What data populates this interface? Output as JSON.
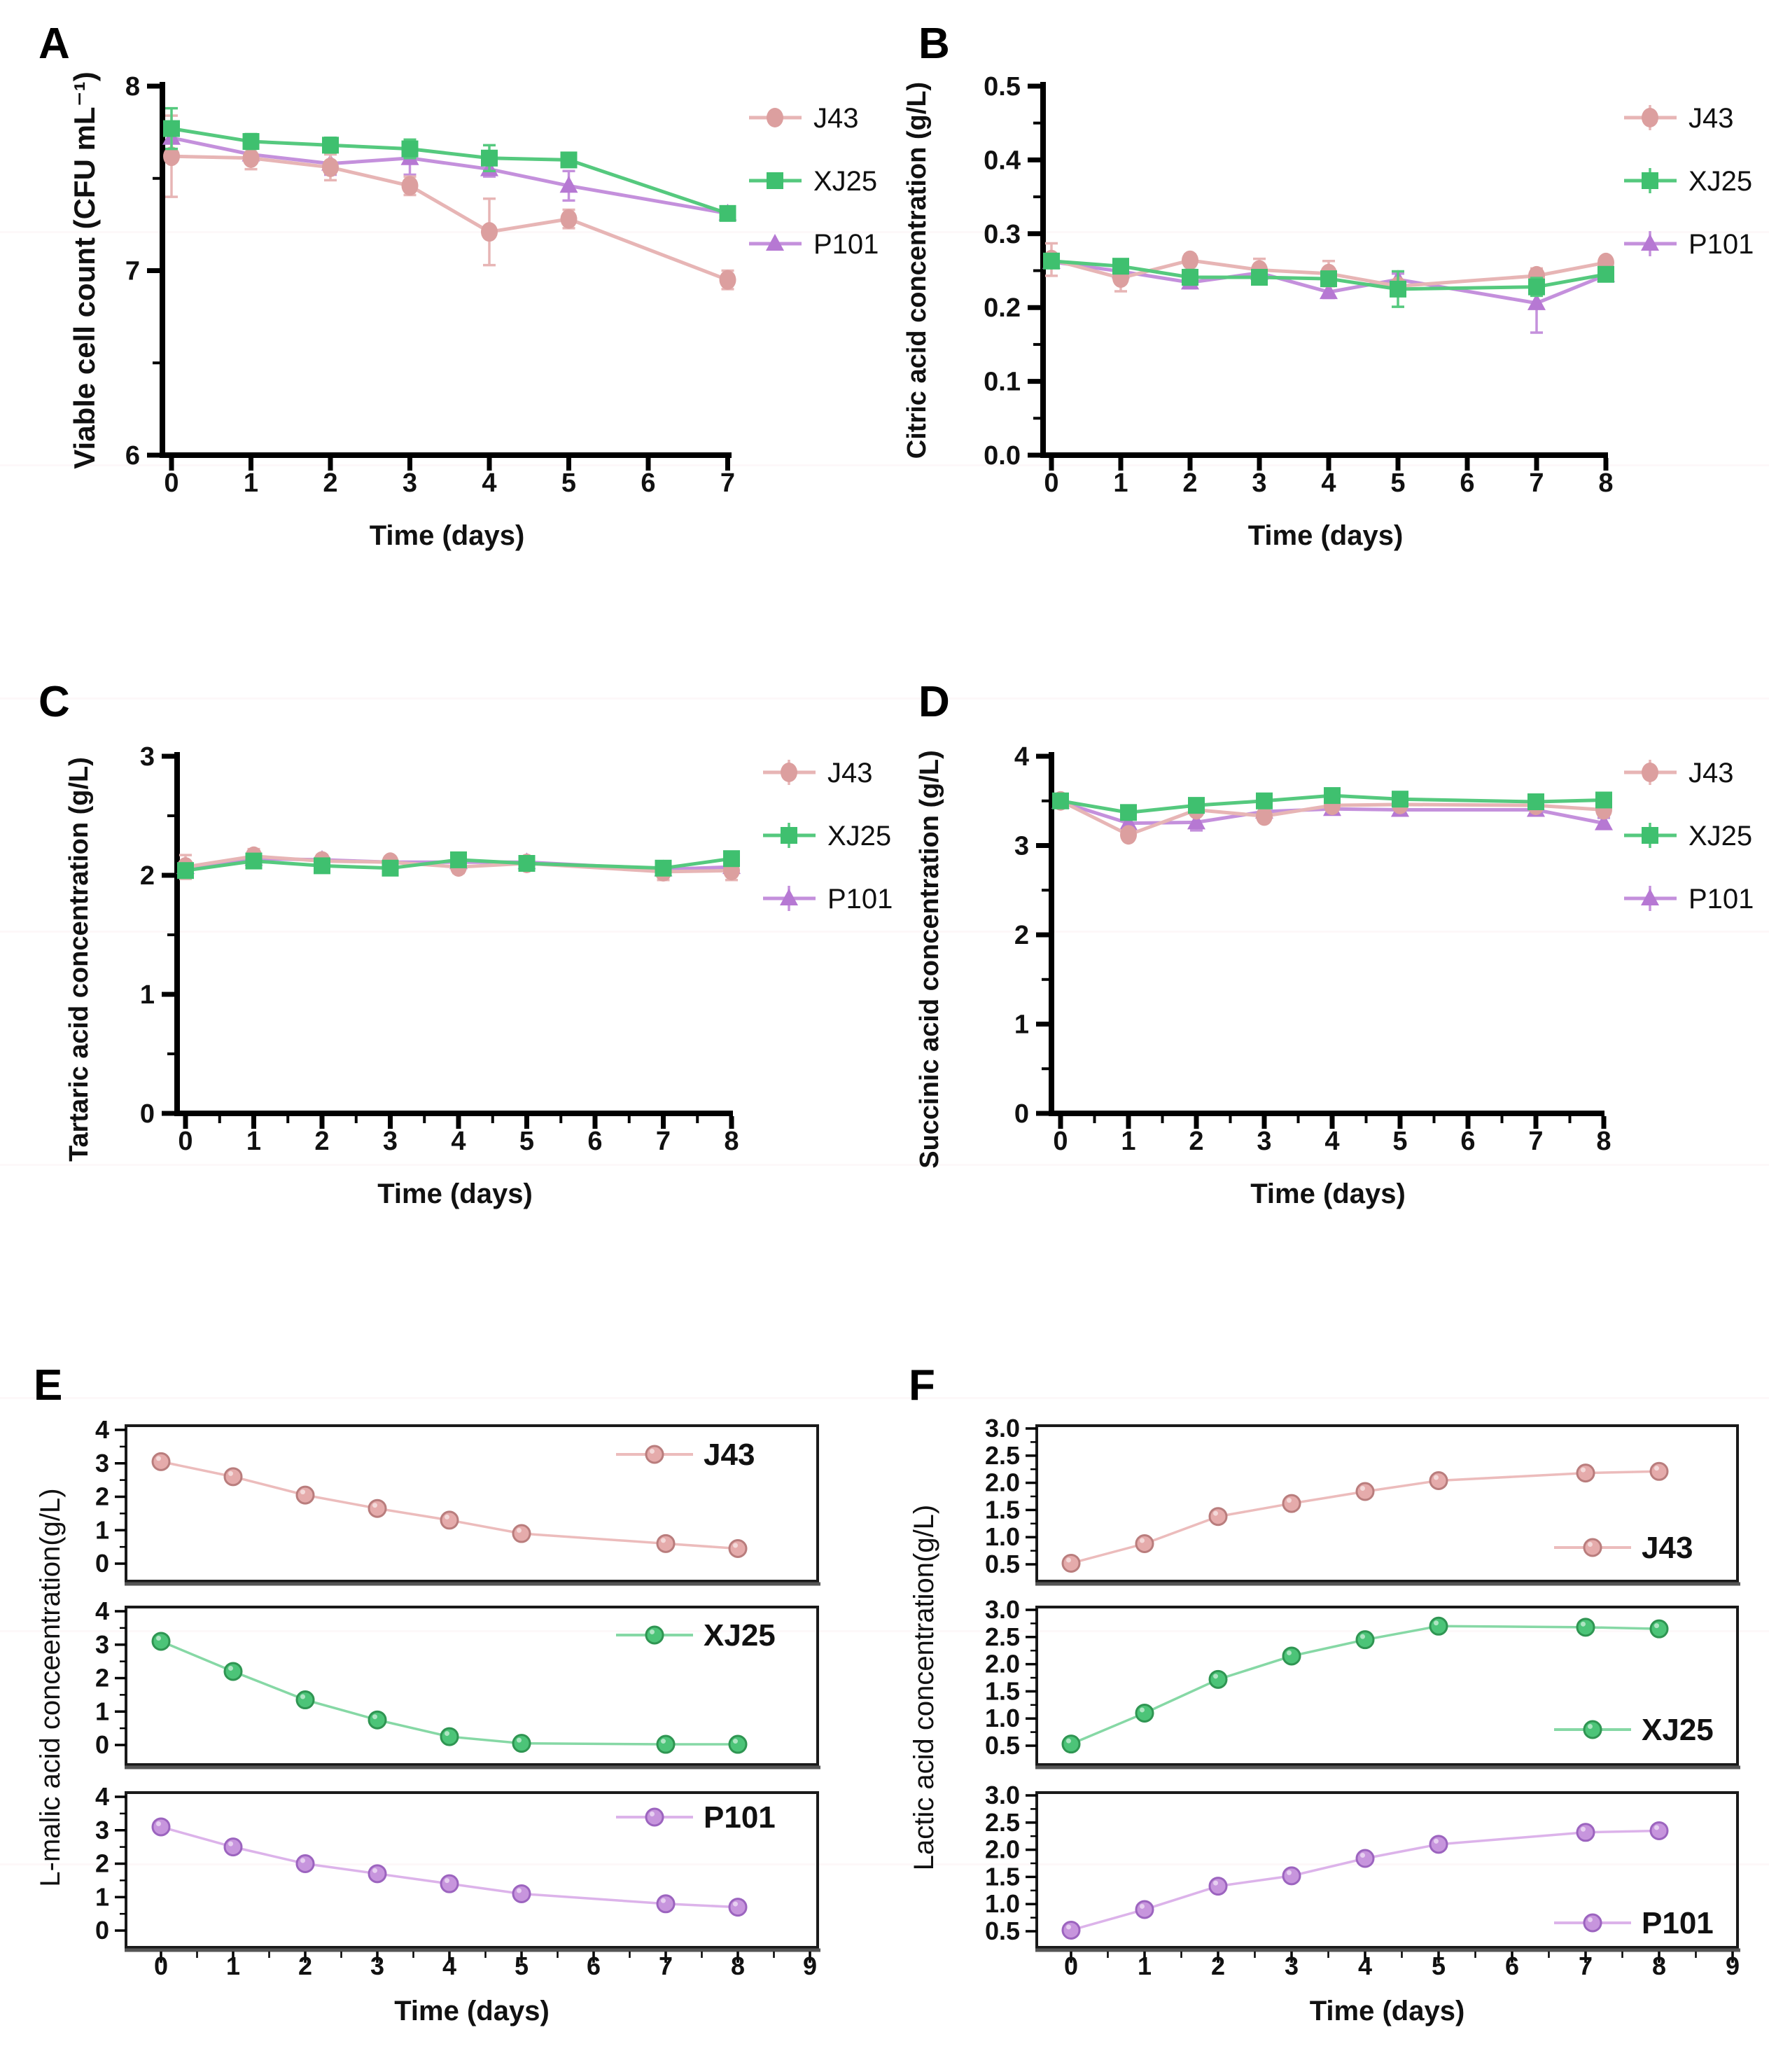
{
  "page": {
    "background": "#ffffff",
    "text_color": "#111111"
  },
  "panels": {
    "A": {
      "label": "A"
    },
    "B": {
      "label": "B"
    },
    "C": {
      "label": "C"
    },
    "D": {
      "label": "D"
    },
    "E": {
      "label": "E"
    },
    "F": {
      "label": "F"
    }
  },
  "series_styles": {
    "J43": {
      "color": "#dc9f9f",
      "line": "#e7b5b5",
      "ef_fill": "#e5abab",
      "ef_stroke": "#b97d7d",
      "ef_line": "#ecbcbc"
    },
    "XJ25": {
      "color": "#3fc06f",
      "line": "#55c97e",
      "ef_fill": "#4cc478",
      "ef_stroke": "#2f9552",
      "ef_line": "#86d8a5"
    },
    "P101": {
      "color": "#b678d3",
      "line": "#c490dc",
      "ef_fill": "#c795dd",
      "ef_stroke": "#9c64bf",
      "ef_line": "#dcb3ea"
    }
  },
  "chart_data": [
    {
      "panel": "A",
      "type": "line",
      "title": "",
      "xlabel": "Time (days)",
      "ylabel": "Viable cell count (CFU mL⁻¹)",
      "x": [
        0,
        1,
        2,
        3,
        4,
        5,
        7
      ],
      "xlim": [
        -0.3,
        7.35
      ],
      "ylim": [
        6,
        8
      ],
      "grid": false,
      "xticks": [
        0,
        1,
        2,
        3,
        4,
        5,
        6,
        7
      ],
      "xtick_labels": [
        "0",
        "1",
        "2",
        "3",
        "4",
        "5",
        "6",
        "7"
      ],
      "xticks_minor": [],
      "yticks": [
        6,
        7,
        8
      ],
      "ytick_labels": [
        "6",
        "7",
        "8"
      ],
      "yticks_minor": [
        6.5,
        7.5
      ],
      "legend_position": "right-outside",
      "legend_errorbar": false,
      "series": [
        {
          "name": "J43",
          "marker": "circle",
          "values": [
            7.62,
            7.61,
            7.56,
            7.46,
            7.21,
            7.28,
            6.95
          ],
          "errors": [
            0.22,
            0.06,
            0.07,
            0.05,
            0.18,
            0.05,
            0.05
          ]
        },
        {
          "name": "XJ25",
          "marker": "square",
          "values": [
            7.77,
            7.7,
            7.68,
            7.66,
            7.61,
            7.6,
            7.31
          ],
          "errors": [
            0.11,
            0.04,
            0.04,
            0.05,
            0.07,
            0.03,
            0.02
          ]
        },
        {
          "name": "P101",
          "marker": "triangle",
          "values": [
            7.72,
            7.63,
            7.58,
            7.61,
            7.55,
            7.46,
            7.31
          ],
          "errors": [
            0.08,
            0.05,
            0.06,
            0.09,
            0.04,
            0.08,
            0.02
          ]
        }
      ]
    },
    {
      "panel": "B",
      "type": "line",
      "title": "",
      "xlabel": "Time (days)",
      "ylabel": "Citric acid concentration（g/L）",
      "x": [
        0,
        1,
        2,
        3,
        4,
        5,
        7,
        8
      ],
      "xlim": [
        -0.3,
        8.35
      ],
      "ylim": [
        0,
        0.5
      ],
      "grid": false,
      "xticks": [
        0,
        1,
        2,
        3,
        4,
        5,
        6,
        7,
        8
      ],
      "xtick_labels": [
        "0",
        "1",
        "2",
        "3",
        "4",
        "5",
        "6",
        "7",
        "8"
      ],
      "xticks_minor": [],
      "yticks": [
        0,
        0.1,
        0.2,
        0.3,
        0.4,
        0.5
      ],
      "ytick_labels": [
        "0.0",
        "0.1",
        "0.2",
        "0.3",
        "0.4",
        "0.5"
      ],
      "yticks_minor": [
        0.05,
        0.15,
        0.25,
        0.35,
        0.45
      ],
      "legend_position": "right-outside",
      "legend_errorbar": true,
      "series": [
        {
          "name": "J43",
          "marker": "circle",
          "values": [
            0.265,
            0.24,
            0.264,
            0.251,
            0.246,
            0.229,
            0.243,
            0.261
          ],
          "errors": [
            0.022,
            0.018,
            0.008,
            0.015,
            0.017,
            0.008,
            0.01,
            0.006
          ]
        },
        {
          "name": "XJ25",
          "marker": "square",
          "values": [
            0.263,
            0.256,
            0.241,
            0.241,
            0.239,
            0.225,
            0.228,
            0.245
          ],
          "errors": [
            0.006,
            0.008,
            0.01,
            0.006,
            0.006,
            0.024,
            0.012,
            0.006
          ]
        },
        {
          "name": "P101",
          "marker": "triangle",
          "values": [
            0.262,
            0.249,
            0.234,
            0.247,
            0.221,
            0.238,
            0.206,
            0.244
          ],
          "errors": [
            0.005,
            0.006,
            0.008,
            0.006,
            0.008,
            0.008,
            0.04,
            0.006
          ]
        }
      ]
    },
    {
      "panel": "C",
      "type": "line",
      "title": "",
      "xlabel": "Time (days)",
      "ylabel": "Tartaric acid concentration（g/L）",
      "x": [
        0,
        1,
        2,
        3,
        4,
        5,
        7,
        8
      ],
      "xlim": [
        -0.3,
        8.35
      ],
      "ylim": [
        0,
        3
      ],
      "grid": false,
      "xticks": [
        0,
        1,
        2,
        3,
        4,
        5,
        6,
        7,
        8
      ],
      "xtick_labels": [
        "0",
        "1",
        "2",
        "3",
        "4",
        "5",
        "6",
        "7",
        "8"
      ],
      "xticks_minor": [
        0.5,
        1.5,
        2.5,
        3.5,
        4.5,
        5.5,
        6.5,
        7.5
      ],
      "yticks": [
        0,
        1,
        2,
        3
      ],
      "ytick_labels": [
        "0",
        "1",
        "2",
        "3"
      ],
      "yticks_minor": [
        0.5,
        1.5,
        2.5
      ],
      "legend_position": "right-outside",
      "legend_errorbar": true,
      "series": [
        {
          "name": "J43",
          "marker": "circle",
          "values": [
            2.07,
            2.16,
            2.12,
            2.11,
            2.07,
            2.1,
            2.03,
            2.04
          ],
          "errors": [
            0.1,
            0.06,
            0.05,
            0.04,
            0.05,
            0.04,
            0.07,
            0.08
          ]
        },
        {
          "name": "XJ25",
          "marker": "square",
          "values": [
            2.04,
            2.12,
            2.08,
            2.06,
            2.13,
            2.1,
            2.06,
            2.14
          ],
          "errors": [
            0.04,
            0.04,
            0.03,
            0.03,
            0.03,
            0.03,
            0.03,
            0.04
          ]
        },
        {
          "name": "P101",
          "marker": "triangle",
          "values": [
            2.07,
            2.14,
            2.13,
            2.11,
            2.11,
            2.11,
            2.05,
            2.07
          ],
          "errors": [
            0.04,
            0.05,
            0.04,
            0.03,
            0.03,
            0.03,
            0.03,
            0.03
          ]
        }
      ]
    },
    {
      "panel": "D",
      "type": "line",
      "title": "",
      "xlabel": "Time (days)",
      "ylabel": "Succinic acid concentration（g/L）",
      "x": [
        0,
        1,
        2,
        3,
        4,
        5,
        7,
        8
      ],
      "xlim": [
        -0.3,
        8.35
      ],
      "ylim": [
        0,
        4
      ],
      "grid": false,
      "xticks": [
        0,
        1,
        2,
        3,
        4,
        5,
        6,
        7,
        8
      ],
      "xtick_labels": [
        "0",
        "1",
        "2",
        "3",
        "4",
        "5",
        "6",
        "7",
        "8"
      ],
      "xticks_minor": [
        0.5,
        1.5,
        2.5,
        3.5,
        4.5,
        5.5,
        6.5,
        7.5
      ],
      "yticks": [
        0,
        1,
        2,
        3,
        4
      ],
      "ytick_labels": [
        "0",
        "1",
        "2",
        "3",
        "4"
      ],
      "yticks_minor": [
        0.5,
        1.5,
        2.5,
        3.5
      ],
      "legend_position": "right-outside",
      "legend_errorbar": true,
      "series": [
        {
          "name": "J43",
          "marker": "circle",
          "values": [
            3.5,
            3.12,
            3.4,
            3.33,
            3.45,
            3.46,
            3.45,
            3.4
          ],
          "errors": [
            0.05,
            0.06,
            0.05,
            0.05,
            0.05,
            0.06,
            0.04,
            0.06
          ]
        },
        {
          "name": "XJ25",
          "marker": "square",
          "values": [
            3.5,
            3.37,
            3.45,
            3.5,
            3.56,
            3.52,
            3.49,
            3.51
          ],
          "errors": [
            0.04,
            0.05,
            0.05,
            0.05,
            0.05,
            0.06,
            0.04,
            0.05
          ]
        },
        {
          "name": "P101",
          "marker": "triangle",
          "values": [
            3.49,
            3.25,
            3.26,
            3.38,
            3.41,
            3.4,
            3.4,
            3.25
          ],
          "errors": [
            0.04,
            0.05,
            0.09,
            0.04,
            0.04,
            0.04,
            0.04,
            0.06
          ]
        }
      ]
    },
    {
      "panel": "E",
      "type": "line-stacked",
      "title": "",
      "xlabel": "Time (days)",
      "ylabel": "L-malic acid conceentration(g/L)",
      "x": [
        0,
        1,
        2,
        3,
        4,
        5,
        7,
        8
      ],
      "xlim": [
        -0.49,
        9.07
      ],
      "ylim_each": [
        -0.52,
        4.13
      ],
      "grid": false,
      "xticks": [
        0,
        1,
        2,
        3,
        4,
        5,
        6,
        7,
        8,
        9
      ],
      "xtick_labels": [
        "0",
        "1",
        "2",
        "3",
        "4",
        "5",
        "6",
        "7",
        "8",
        "9"
      ],
      "xticks_minor": [
        0.5,
        1.5,
        2.5,
        3.5,
        4.5,
        5.5,
        6.5,
        7.5,
        8.5
      ],
      "yticks": [
        0,
        1,
        2,
        3,
        4
      ],
      "ytick_labels": [
        "0",
        "1",
        "2",
        "3",
        "4"
      ],
      "yticks_minor": [
        0.5,
        1.5,
        2.5,
        3.5
      ],
      "legend_position": "inside-top-right",
      "subplots": [
        {
          "name": "J43",
          "marker": "sphere",
          "values": [
            3.05,
            2.6,
            2.05,
            1.65,
            1.3,
            0.9,
            0.6,
            0.45
          ],
          "errors": [
            0.1,
            0.08,
            0.08,
            0.08,
            0.07,
            0.08,
            0.07,
            0.07
          ]
        },
        {
          "name": "XJ25",
          "marker": "sphere",
          "values": [
            3.1,
            2.2,
            1.35,
            0.75,
            0.25,
            0.05,
            0.02,
            0.02
          ],
          "errors": [
            0.1,
            0.09,
            0.08,
            0.07,
            0.06,
            0.05,
            0.04,
            0.04
          ]
        },
        {
          "name": "P101",
          "marker": "sphere",
          "values": [
            3.1,
            2.5,
            2.0,
            1.7,
            1.4,
            1.1,
            0.8,
            0.7
          ],
          "errors": [
            0.09,
            0.07,
            0.07,
            0.07,
            0.06,
            0.06,
            0.05,
            0.05
          ]
        }
      ]
    },
    {
      "panel": "F",
      "type": "line-stacked",
      "title": "",
      "xlabel": "Time (days)",
      "ylabel": "Lactic acid concentration(g/L)",
      "x": [
        0,
        1,
        2,
        3,
        4,
        5,
        7,
        8
      ],
      "xlim": [
        -0.49,
        9.07
      ],
      "ylim_each": [
        0.19,
        3.05
      ],
      "grid": false,
      "xticks": [
        0,
        1,
        2,
        3,
        4,
        5,
        6,
        7,
        8,
        9
      ],
      "xtick_labels": [
        "0",
        "1",
        "2",
        "3",
        "4",
        "5",
        "6",
        "7",
        "8",
        "9"
      ],
      "xticks_minor": [
        0.5,
        1.5,
        2.5,
        3.5,
        4.5,
        5.5,
        6.5,
        7.5,
        8.5
      ],
      "yticks": [
        0.5,
        1.0,
        1.5,
        2.0,
        2.5,
        3.0
      ],
      "ytick_labels": [
        "0.5",
        "1.0",
        "1.5",
        "2.0",
        "2.5",
        "3.0"
      ],
      "yticks_minor": [
        0.75,
        1.25,
        1.75,
        2.25,
        2.75
      ],
      "legend_position": "inside-bottom-right",
      "subplots": [
        {
          "name": "J43",
          "marker": "sphere",
          "values": [
            0.52,
            0.88,
            1.38,
            1.62,
            1.84,
            2.04,
            2.18,
            2.21
          ],
          "errors": [
            0.06,
            0.07,
            0.08,
            0.07,
            0.07,
            0.06,
            0.09,
            0.07
          ]
        },
        {
          "name": "XJ25",
          "marker": "sphere",
          "values": [
            0.53,
            1.1,
            1.72,
            2.15,
            2.45,
            2.7,
            2.68,
            2.65
          ],
          "errors": [
            0.06,
            0.06,
            0.07,
            0.08,
            0.06,
            0.05,
            0.06,
            0.07
          ]
        },
        {
          "name": "P101",
          "marker": "sphere",
          "values": [
            0.52,
            0.9,
            1.33,
            1.52,
            1.84,
            2.1,
            2.32,
            2.35
          ],
          "errors": [
            0.05,
            0.06,
            0.07,
            0.06,
            0.07,
            0.06,
            0.07,
            0.06
          ]
        }
      ]
    }
  ]
}
